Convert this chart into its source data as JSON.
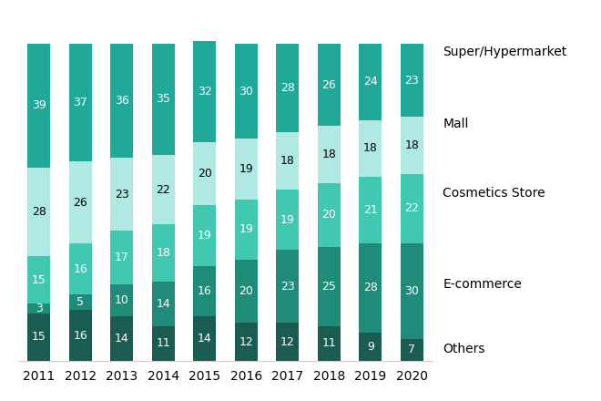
{
  "years": [
    "2011",
    "2012",
    "2013",
    "2014",
    "2015",
    "2016",
    "2017",
    "2018",
    "2019",
    "2020"
  ],
  "categories": [
    "Others",
    "E-commerce",
    "Cosmetics Store",
    "Mall",
    "Super/Hypermarket"
  ],
  "values": {
    "Others": [
      15,
      16,
      14,
      11,
      14,
      12,
      12,
      11,
      9,
      7
    ],
    "E-commerce": [
      3,
      5,
      10,
      14,
      16,
      20,
      23,
      25,
      28,
      30
    ],
    "Cosmetics Store": [
      15,
      16,
      17,
      18,
      19,
      19,
      19,
      20,
      21,
      22
    ],
    "Mall": [
      28,
      26,
      23,
      22,
      20,
      19,
      18,
      18,
      18,
      18
    ],
    "Super/Hypermarket": [
      39,
      37,
      36,
      35,
      32,
      30,
      28,
      26,
      24,
      23
    ]
  },
  "colors": {
    "Others": "#1a5c52",
    "E-commerce": "#1e8c78",
    "Cosmetics Store": "#40c8b0",
    "Mall": "#b0e8e4",
    "Super/Hypermarket": "#20a898"
  },
  "bar_width": 0.55,
  "figsize": [
    6.6,
    4.4
  ],
  "dpi": 100,
  "background_color": "#ffffff",
  "label_fontsize": 9,
  "legend_fontsize": 10,
  "tick_fontsize": 10
}
